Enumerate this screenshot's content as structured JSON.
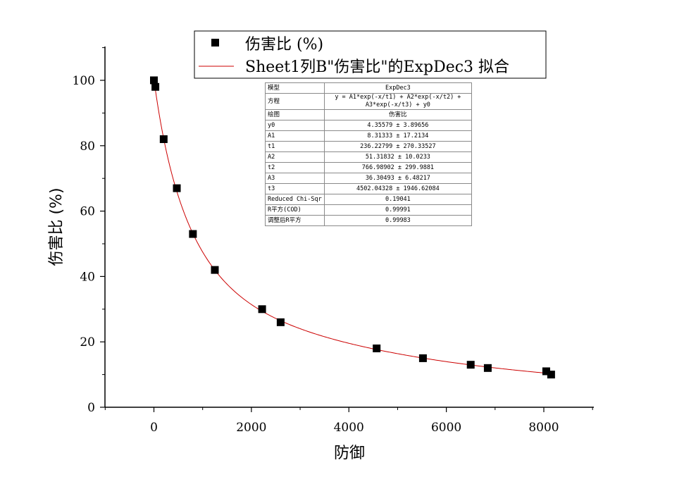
{
  "chart_data": {
    "type": "scatter",
    "xlabel": "防御",
    "ylabel": "伤害比 (%)",
    "xlim": [
      -1000,
      9000
    ],
    "ylim": [
      0,
      110
    ],
    "x_ticks": [
      "0",
      "2000",
      "4000",
      "6000",
      "8000"
    ],
    "y_ticks": [
      "0",
      "20",
      "40",
      "60",
      "80",
      "100"
    ],
    "grid": false,
    "legend_placement": "top",
    "legend": [
      "伤害比 (%)",
      "Sheet1列B\"伤害比\"的ExpDec3 拟合"
    ],
    "series": [
      {
        "name": "伤害比 (%)",
        "marker": "square",
        "color": "#000000",
        "x": [
          0,
          30,
          200,
          470,
          800,
          1250,
          2220,
          2600,
          4570,
          5520,
          6500,
          6850,
          8050,
          8150
        ],
        "y": [
          100,
          98,
          82,
          67,
          53,
          42,
          30,
          26,
          18,
          15,
          13,
          12,
          11,
          10
        ]
      },
      {
        "name": "Sheet1列B\"伤害比\"的ExpDec3 拟合",
        "line": true,
        "color": "#cc0000",
        "model": "ExpDec3",
        "params": {
          "y0": 4.35579,
          "A1": 8.31333,
          "t1": 236.22799,
          "A2": 51.31832,
          "t2": 766.98902,
          "A3": 36.30493,
          "t3": 4502.04328
        },
        "x_range": [
          0,
          8150
        ]
      }
    ]
  },
  "fit_table": [
    {
      "label": "模型",
      "value": "ExpDec3"
    },
    {
      "label": "方程",
      "value": "y = A1*exp(-x/t1) + A2*exp(-x/t2) + A3*exp(-x/t3) + y0"
    },
    {
      "label": "绘图",
      "value": "伤害比"
    },
    {
      "label": "y0",
      "value": "4.35579 ± 3.89656"
    },
    {
      "label": "A1",
      "value": "8.31333 ± 17.2134"
    },
    {
      "label": "t1",
      "value": "236.22799 ± 270.33527"
    },
    {
      "label": "A2",
      "value": "51.31832 ± 10.0233"
    },
    {
      "label": "t2",
      "value": "766.98902 ± 299.9881"
    },
    {
      "label": "A3",
      "value": "36.30493 ± 6.48217"
    },
    {
      "label": "t3",
      "value": "4502.04328 ± 1946.62084"
    },
    {
      "label": "Reduced Chi-Sqr",
      "value": "0.19041"
    },
    {
      "label": "R平方(COD)",
      "value": "0.99991"
    },
    {
      "label": "调整后R平方",
      "value": "0.99983"
    }
  ]
}
